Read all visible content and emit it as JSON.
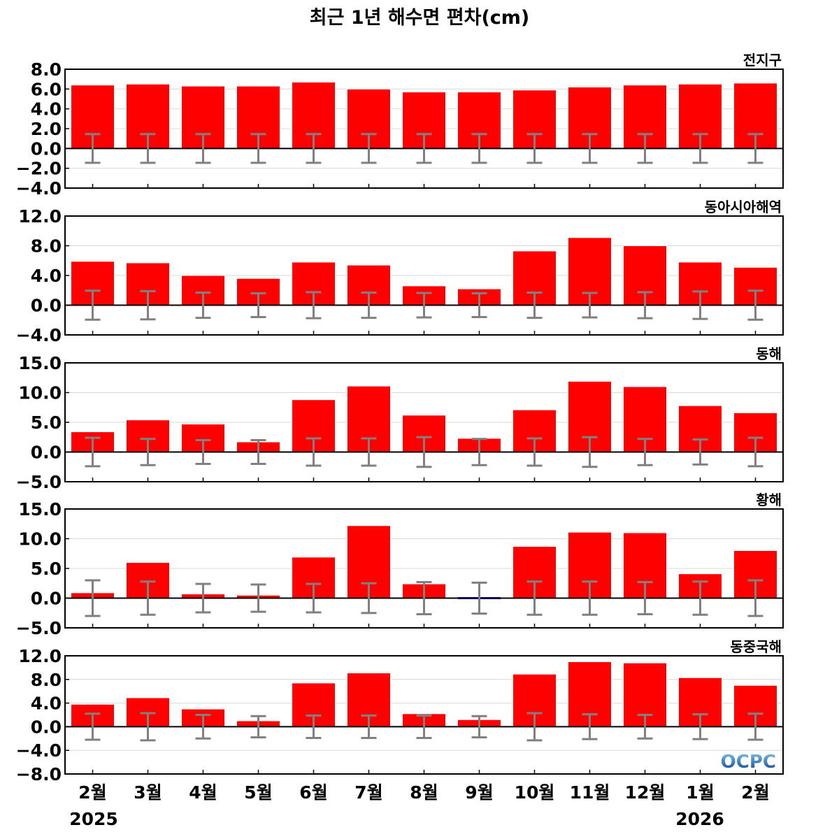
{
  "title": "최근 1년 해수면 편차(cm)",
  "year_labels": [
    "2025",
    "2026"
  ],
  "logo_text": "OCPC",
  "colors": {
    "positive_bar": "#ff0000",
    "negative_bar": "#0000ff",
    "error_bar": "#808080",
    "zero_line": "#000000",
    "grid": "#d9d9d9",
    "logo_top": "#7ec8e8",
    "logo_bottom": "#0a3d8f"
  },
  "chart_data": [
    {
      "type": "bar",
      "title": "전지구",
      "categories": [
        "2월",
        "3월",
        "4월",
        "5월",
        "6월",
        "7월",
        "8월",
        "9월",
        "10월",
        "11월",
        "12월",
        "1월",
        "2월"
      ],
      "values": [
        6.4,
        6.5,
        6.3,
        6.3,
        6.7,
        6.0,
        5.7,
        5.7,
        5.9,
        6.2,
        6.4,
        6.5,
        6.6
      ],
      "error_range": [
        1.45,
        1.45,
        1.45,
        1.45,
        1.45,
        1.45,
        1.45,
        1.45,
        1.45,
        1.45,
        1.45,
        1.45,
        1.45
      ],
      "ylim": [
        -4.0,
        8.0
      ],
      "yticks": [
        -4.0,
        -2.0,
        0.0,
        2.0,
        4.0,
        6.0,
        8.0
      ],
      "ytick_labels": [
        "−4.0",
        "−2.0",
        "0.0",
        "2.0",
        "4.0",
        "6.0",
        "8.0"
      ],
      "grid": true
    },
    {
      "type": "bar",
      "title": "동아시아해역",
      "categories": [
        "2월",
        "3월",
        "4월",
        "5월",
        "6월",
        "7월",
        "8월",
        "9월",
        "10월",
        "11월",
        "12월",
        "1월",
        "2월"
      ],
      "values": [
        5.9,
        5.7,
        4.0,
        3.6,
        5.8,
        5.4,
        2.6,
        2.2,
        7.3,
        9.1,
        8.0,
        5.8,
        5.1
      ],
      "error_range": [
        1.95,
        1.9,
        1.7,
        1.6,
        1.75,
        1.7,
        1.65,
        1.6,
        1.7,
        1.65,
        1.75,
        1.85,
        1.95
      ],
      "ylim": [
        -4.0,
        12.0
      ],
      "yticks": [
        -4.0,
        0.0,
        4.0,
        8.0,
        12.0
      ],
      "ytick_labels": [
        "−4.0",
        "0.0",
        "4.0",
        "8.0",
        "12.0"
      ],
      "grid": true
    },
    {
      "type": "bar",
      "title": "동해",
      "categories": [
        "2월",
        "3월",
        "4월",
        "5월",
        "6월",
        "7월",
        "8월",
        "9월",
        "10월",
        "11월",
        "12월",
        "1월",
        "2월"
      ],
      "values": [
        3.4,
        5.4,
        4.7,
        1.7,
        8.8,
        11.1,
        6.2,
        2.3,
        7.1,
        11.9,
        11.0,
        7.8,
        6.6
      ],
      "error_range": [
        2.4,
        2.2,
        2.0,
        2.0,
        2.3,
        2.3,
        2.5,
        2.2,
        2.3,
        2.5,
        2.2,
        2.1,
        2.4
      ],
      "ylim": [
        -5.0,
        15.0
      ],
      "yticks": [
        -5.0,
        0.0,
        5.0,
        10.0,
        15.0
      ],
      "ytick_labels": [
        "−5.0",
        "0.0",
        "5.0",
        "10.0",
        "15.0"
      ],
      "grid": true
    },
    {
      "type": "bar",
      "title": "황해",
      "categories": [
        "2월",
        "3월",
        "4월",
        "5월",
        "6월",
        "7월",
        "8월",
        "9월",
        "10월",
        "11월",
        "12월",
        "1월",
        "2월"
      ],
      "values": [
        0.9,
        6.0,
        0.7,
        0.5,
        6.9,
        12.2,
        2.4,
        -0.3,
        8.7,
        11.1,
        11.0,
        4.1,
        8.0
      ],
      "error_range": [
        3.0,
        2.8,
        2.4,
        2.3,
        2.4,
        2.5,
        2.7,
        2.6,
        2.8,
        2.8,
        2.7,
        2.8,
        3.0
      ],
      "ylim": [
        -5.0,
        15.0
      ],
      "yticks": [
        -5.0,
        0.0,
        5.0,
        10.0,
        15.0
      ],
      "ytick_labels": [
        "−5.0",
        "0.0",
        "5.0",
        "10.0",
        "15.0"
      ],
      "grid": true
    },
    {
      "type": "bar",
      "title": "동중국해",
      "categories": [
        "2월",
        "3월",
        "4월",
        "5월",
        "6월",
        "7월",
        "8월",
        "9월",
        "10월",
        "11월",
        "12월",
        "1월",
        "2월"
      ],
      "values": [
        3.8,
        4.9,
        3.0,
        1.0,
        7.4,
        9.1,
        2.2,
        1.2,
        8.9,
        11.0,
        10.8,
        8.3,
        7.0
      ],
      "error_range": [
        2.2,
        2.3,
        2.0,
        1.8,
        1.9,
        1.9,
        1.9,
        1.8,
        2.3,
        2.1,
        2.0,
        2.1,
        2.2
      ],
      "ylim": [
        -8.0,
        12.0
      ],
      "yticks": [
        -8.0,
        -4.0,
        0.0,
        4.0,
        8.0,
        12.0
      ],
      "ytick_labels": [
        "−8.0",
        "−4.0",
        "0.0",
        "4.0",
        "8.0",
        "12.0"
      ],
      "grid": true
    }
  ]
}
